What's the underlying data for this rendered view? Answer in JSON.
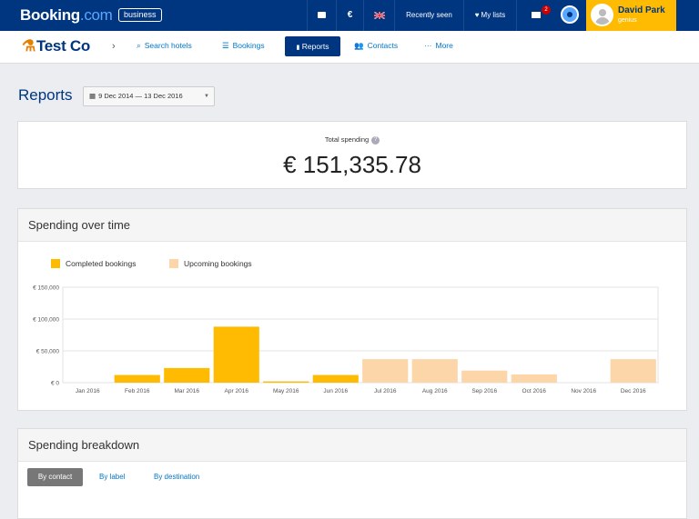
{
  "topbar": {
    "brand_main": "Booking",
    "brand_dot": ".com",
    "business_badge": "business",
    "currency": "€",
    "recently_seen": "Recently seen",
    "my_lists": "My lists",
    "mail_count": "2",
    "user_name": "David Park",
    "user_sub": "genius"
  },
  "subnav": {
    "company": "Test Co",
    "items": [
      {
        "label": "Search hotels",
        "icon": "search-icon"
      },
      {
        "label": "Bookings",
        "icon": "list-icon"
      },
      {
        "label": "Reports",
        "icon": "bar-chart-icon"
      },
      {
        "label": "Contacts",
        "icon": "people-icon"
      },
      {
        "label": "More",
        "icon": "more-icon"
      }
    ]
  },
  "reports": {
    "title": "Reports",
    "date_range": "9 Dec 2014 — 13 Dec 2016"
  },
  "total": {
    "label": "Total spending",
    "value": "€ 151,335.78"
  },
  "spending_over_time": {
    "title": "Spending over time",
    "legend_completed": "Completed bookings",
    "legend_upcoming": "Upcoming bookings"
  },
  "breakdown": {
    "title": "Spending breakdown",
    "tabs": [
      "By contact",
      "By label",
      "By destination"
    ]
  },
  "colors": {
    "brand_blue": "#003580",
    "completed": "#febb02",
    "upcoming": "#fcd5a8"
  },
  "chart_data": {
    "type": "bar",
    "categories": [
      "Jan 2016",
      "Feb 2016",
      "Mar 2016",
      "Apr 2016",
      "May 2016",
      "Jun 2016",
      "Jul 2016",
      "Aug 2016",
      "Sep 2016",
      "Oct 2016",
      "Nov 2016",
      "Dec 2016"
    ],
    "series": [
      {
        "name": "Completed bookings",
        "values": [
          0,
          12000,
          23000,
          88000,
          2000,
          12000,
          0,
          0,
          0,
          0,
          0,
          0
        ]
      },
      {
        "name": "Upcoming bookings",
        "values": [
          0,
          0,
          0,
          0,
          0,
          0,
          37000,
          37000,
          19000,
          13000,
          0,
          37000
        ]
      }
    ],
    "y_ticks": [
      "€ 0",
      "€ 50,000",
      "€ 100,000",
      "€ 150,000"
    ],
    "ylim": [
      0,
      150000
    ],
    "grid": true,
    "legend": "top-left"
  }
}
